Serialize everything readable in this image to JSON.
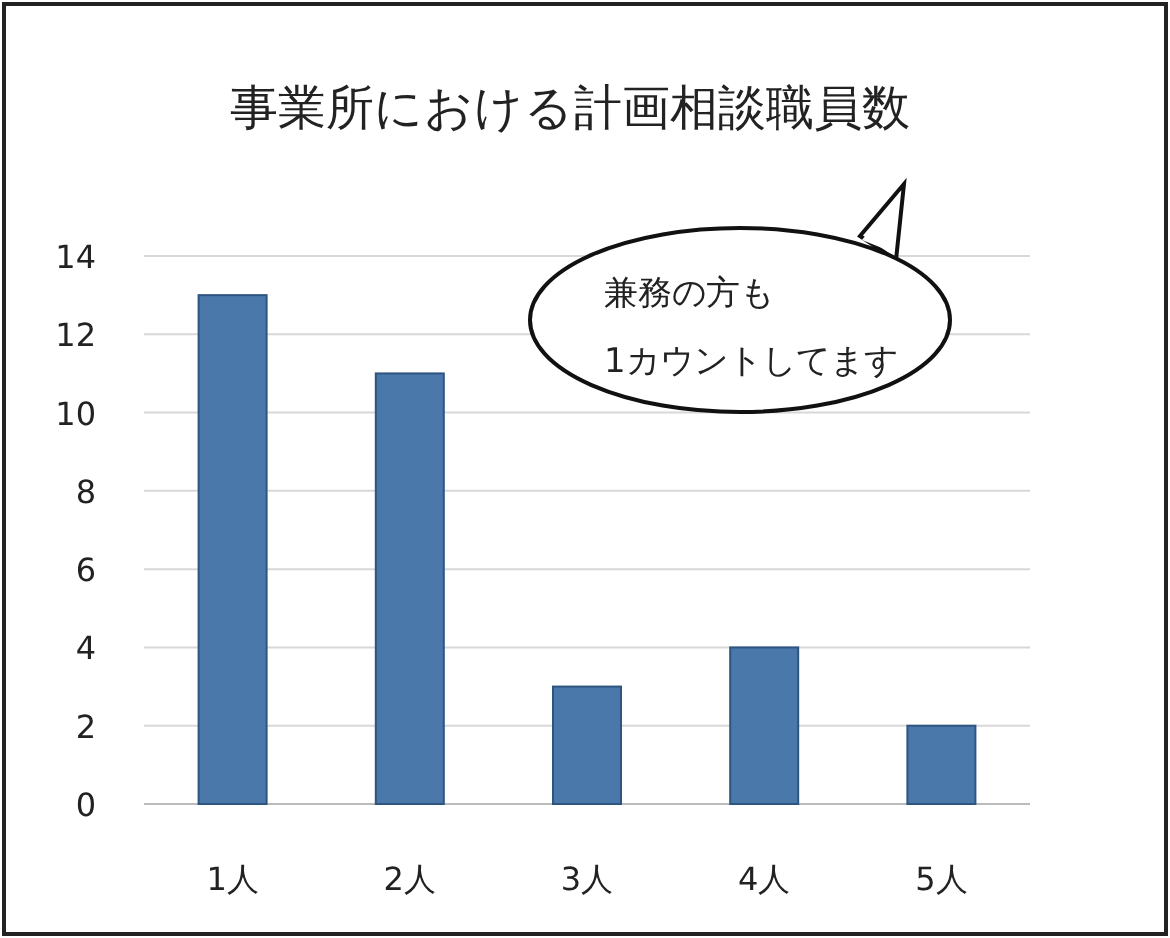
{
  "chart_data": {
    "type": "bar",
    "title": "事業所における計画相談職員数",
    "categories": [
      "1人",
      "2人",
      "3人",
      "4人",
      "5人"
    ],
    "values": [
      13,
      11,
      3,
      4,
      2
    ],
    "color": "#4a78ab",
    "ylim": [
      0,
      14
    ],
    "yticks": [
      0,
      2,
      4,
      6,
      8,
      10,
      12,
      14
    ],
    "grid": "y",
    "annotations": [
      "兼務の方も",
      "1カウントしてます"
    ]
  }
}
